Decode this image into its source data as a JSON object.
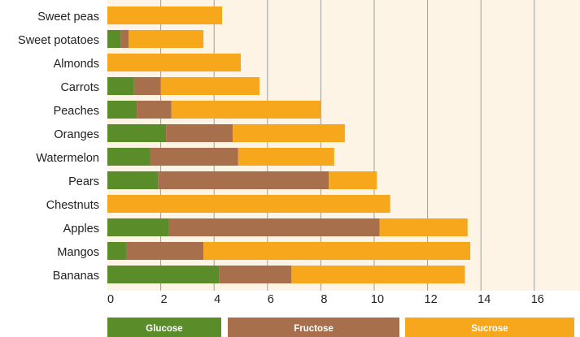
{
  "chart_data": {
    "type": "bar",
    "orientation": "horizontal",
    "stacked": true,
    "categories": [
      "Sweet peas",
      "Sweet potatoes",
      "Almonds",
      "Carrots",
      "Peaches",
      "Oranges",
      "Watermelon",
      "Pears",
      "Chestnuts",
      "Apples",
      "Mangos",
      "Bananas"
    ],
    "series": [
      {
        "name": "Glucose",
        "color": "#5b8c2a",
        "values": [
          0,
          0.5,
          0,
          1.0,
          1.1,
          2.2,
          1.6,
          1.9,
          0,
          2.3,
          0.7,
          4.2
        ]
      },
      {
        "name": "Fructose",
        "color": "#a86f4c",
        "values": [
          0,
          0.3,
          0,
          1.0,
          1.3,
          2.5,
          3.3,
          6.4,
          0,
          7.9,
          2.9,
          2.7
        ]
      },
      {
        "name": "Sucrose",
        "color": "#f7a71c",
        "values": [
          4.3,
          2.8,
          5.0,
          3.7,
          5.6,
          4.2,
          3.6,
          1.8,
          10.6,
          3.3,
          10.0,
          6.5
        ]
      }
    ],
    "xlim": [
      0,
      17.5
    ],
    "xticks": [
      "0",
      "2",
      "4",
      "6",
      "8",
      "10",
      "12",
      "14",
      "16"
    ],
    "grid": true,
    "legend_position": "bottom",
    "background_color": "#fdf4e6",
    "grid_color": "#9e9e9e"
  }
}
